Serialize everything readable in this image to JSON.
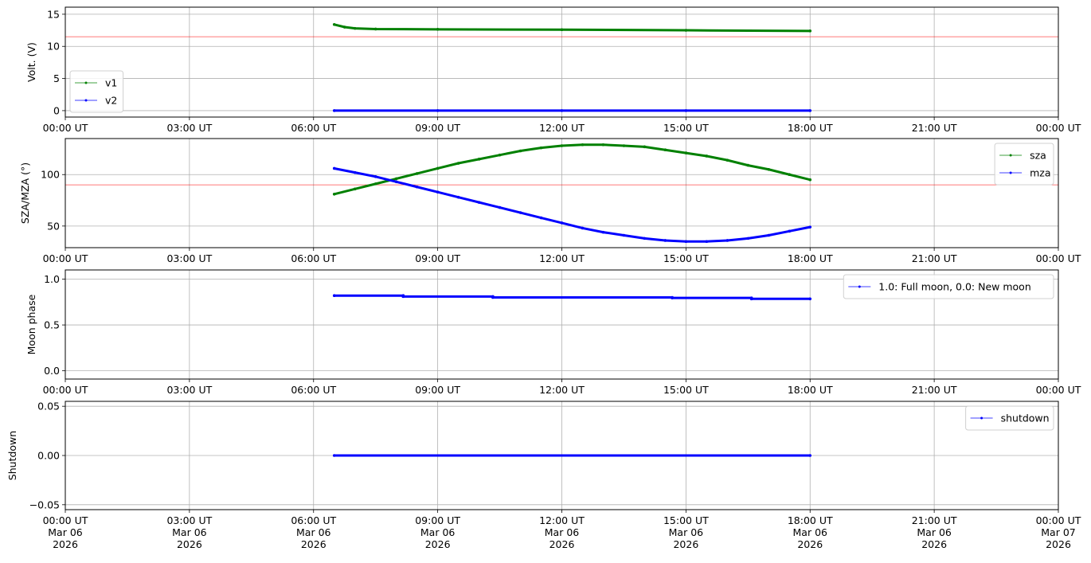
{
  "chart_data": [
    {
      "type": "line",
      "ylabel": "Volt. (V)",
      "ylim": [
        -1,
        16.1
      ],
      "yticks": [
        0,
        5,
        10,
        15
      ],
      "ytick_labels": [
        "0",
        "5",
        "10",
        "15"
      ],
      "reference_line": {
        "y": 11.5,
        "color": "#ff0000"
      },
      "legend_position": "lower-left",
      "series": [
        {
          "name": "v1",
          "color": "#008000",
          "x": [
            "06:30",
            "06:45",
            "07:00",
            "07:30",
            "09:00",
            "12:00",
            "15:00",
            "18:00"
          ],
          "y": [
            13.4,
            13.0,
            12.8,
            12.7,
            12.65,
            12.6,
            12.5,
            12.4
          ]
        },
        {
          "name": "v2",
          "color": "#0000ff",
          "x": [
            "06:30",
            "09:00",
            "12:00",
            "15:00",
            "18:00"
          ],
          "y": [
            0,
            0,
            0,
            0,
            0
          ]
        }
      ]
    },
    {
      "type": "line",
      "ylabel": "SZA/MZA (°)",
      "ylim": [
        29,
        135
      ],
      "yticks": [
        50,
        100
      ],
      "ytick_labels": [
        "50",
        "100"
      ],
      "reference_line": {
        "y": 90,
        "color": "#ff0000"
      },
      "legend_position": "upper-right",
      "series": [
        {
          "name": "sza",
          "color": "#008000",
          "x": [
            "06:30",
            "07:00",
            "07:30",
            "08:00",
            "08:30",
            "09:00",
            "09:30",
            "10:00",
            "10:30",
            "11:00",
            "11:30",
            "12:00",
            "12:30",
            "13:00",
            "13:30",
            "14:00",
            "14:30",
            "15:00",
            "15:30",
            "16:00",
            "16:30",
            "17:00",
            "17:30",
            "18:00"
          ],
          "y": [
            81,
            86,
            91,
            96,
            101,
            106,
            111,
            115,
            119,
            123,
            126,
            128,
            129,
            129,
            128,
            127,
            124,
            121,
            118,
            114,
            109,
            105,
            100,
            95
          ]
        },
        {
          "name": "mza",
          "color": "#0000ff",
          "x": [
            "06:30",
            "07:00",
            "07:30",
            "08:00",
            "08:30",
            "09:00",
            "09:30",
            "10:00",
            "10:30",
            "11:00",
            "11:30",
            "12:00",
            "12:30",
            "13:00",
            "13:30",
            "14:00",
            "14:30",
            "15:00",
            "15:30",
            "16:00",
            "16:30",
            "17:00",
            "17:30",
            "18:00"
          ],
          "y": [
            106,
            102,
            98,
            93,
            88,
            83,
            78,
            73,
            68,
            63,
            58,
            53,
            48,
            44,
            41,
            38,
            36,
            35,
            35,
            36,
            38,
            41,
            45,
            49
          ]
        }
      ]
    },
    {
      "type": "line",
      "ylabel": "Moon phase",
      "ylim": [
        -0.09,
        1.1
      ],
      "yticks": [
        0,
        0.5,
        1.0
      ],
      "ytick_labels": [
        "0.0",
        "0.5",
        "1.0"
      ],
      "legend_position": "upper-right",
      "series": [
        {
          "name": "1.0: Full moon, 0.0: New moon",
          "color": "#0000ff",
          "x": [
            "06:30",
            "08:10",
            "08:10",
            "10:20",
            "10:20",
            "14:40",
            "14:40",
            "16:35",
            "16:35",
            "18:00"
          ],
          "y": [
            0.82,
            0.82,
            0.81,
            0.81,
            0.8,
            0.8,
            0.795,
            0.795,
            0.785,
            0.785
          ]
        }
      ]
    },
    {
      "type": "line",
      "ylabel": "Shutdown",
      "ylim": [
        -0.055,
        0.055
      ],
      "yticks": [
        -0.05,
        0,
        0.05
      ],
      "ytick_labels": [
        "−0.05",
        "0.00",
        "0.05"
      ],
      "legend_position": "upper-right",
      "series": [
        {
          "name": "shutdown",
          "color": "#0000ff",
          "x": [
            "06:30",
            "18:00"
          ],
          "y": [
            0,
            0
          ]
        }
      ]
    }
  ],
  "x_axis": {
    "range": [
      "00:00",
      "24:00"
    ],
    "ticks": [
      "00:00",
      "03:00",
      "06:00",
      "09:00",
      "12:00",
      "15:00",
      "18:00",
      "21:00",
      "24:00"
    ],
    "tick_labels": [
      "00:00 UT",
      "03:00 UT",
      "06:00 UT",
      "09:00 UT",
      "12:00 UT",
      "15:00 UT",
      "18:00 UT",
      "21:00 UT",
      "00:00 UT"
    ],
    "date_labels": [
      "Mar 06",
      "Mar 06",
      "Mar 06",
      "Mar 06",
      "Mar 06",
      "Mar 06",
      "Mar 06",
      "Mar 06",
      "Mar 07"
    ],
    "year_labels": [
      "2026",
      "2026",
      "2026",
      "2026",
      "2026",
      "2026",
      "2026",
      "2026",
      "2026"
    ]
  },
  "grid": true
}
